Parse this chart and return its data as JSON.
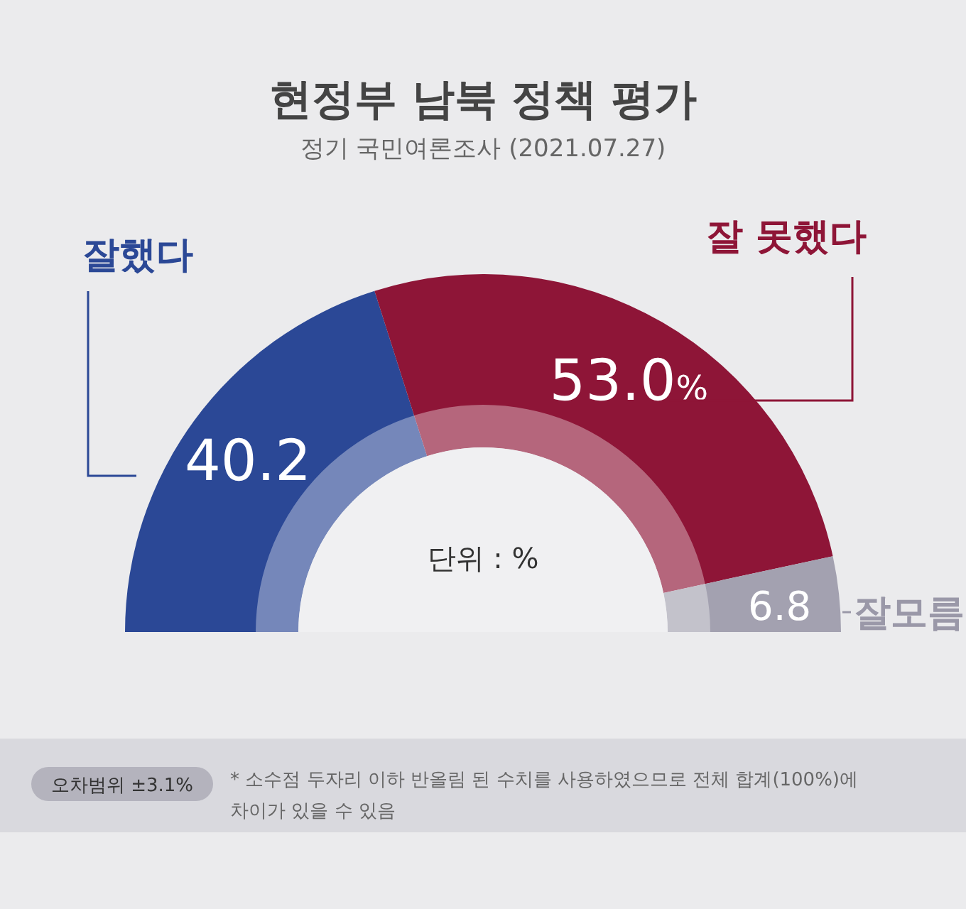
{
  "chart_data": {
    "type": "donut",
    "title": "현정부 남북 정책 평가",
    "subtitle": "정기 국민여론조사 (2021.07.27)",
    "categories": [
      "잘했다",
      "잘 못했다",
      "잘모름"
    ],
    "values": [
      40.2,
      53.0,
      6.8
    ],
    "colors": [
      "#2b4896",
      "#8e1537",
      "#a3a1b0"
    ],
    "value_labels": [
      "40.2",
      "53.0%",
      "6.8"
    ],
    "annotations": [
      "단위 : %",
      "오차범위 ±3.1%",
      "* 소수점 두자리 이하 반올림 된 수치를 사용하였으므로 전체 합계(100%)에 차이가 있을 수 있음"
    ]
  }
}
